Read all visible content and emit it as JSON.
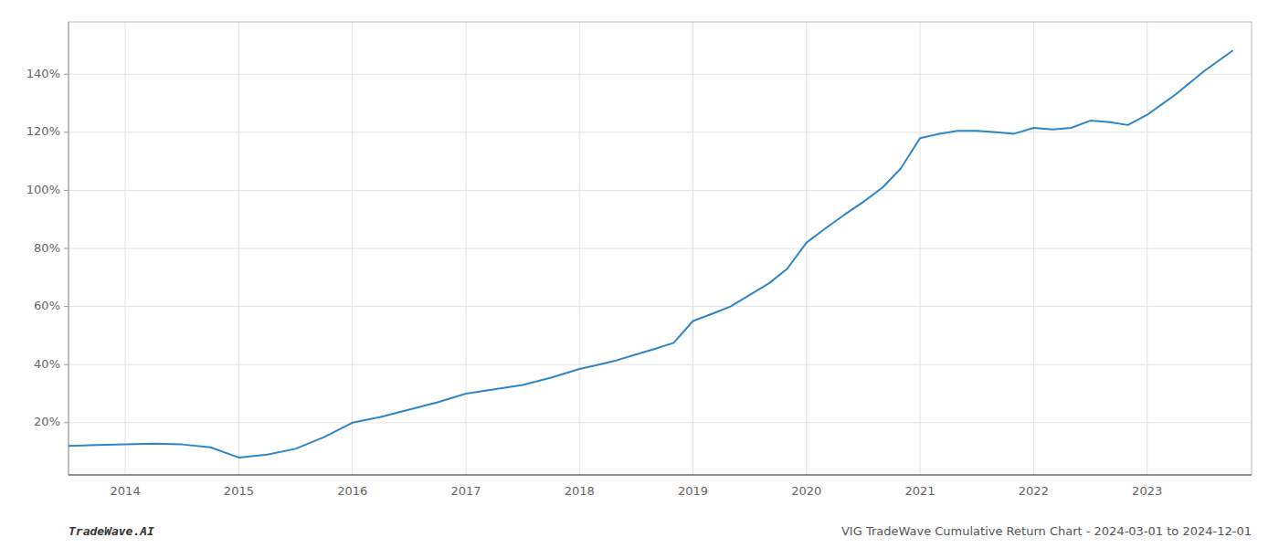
{
  "chart_data": {
    "type": "line",
    "x": [
      2013.5,
      2013.75,
      2014.0,
      2014.25,
      2014.5,
      2014.75,
      2015.0,
      2015.25,
      2015.5,
      2015.75,
      2016.0,
      2016.25,
      2016.5,
      2016.75,
      2017.0,
      2017.25,
      2017.5,
      2017.75,
      2018.0,
      2018.17,
      2018.33,
      2018.5,
      2018.67,
      2018.83,
      2019.0,
      2019.17,
      2019.33,
      2019.5,
      2019.67,
      2019.83,
      2020.0,
      2020.17,
      2020.33,
      2020.5,
      2020.67,
      2020.83,
      2021.0,
      2021.17,
      2021.33,
      2021.5,
      2021.67,
      2021.83,
      2022.0,
      2022.17,
      2022.33,
      2022.5,
      2022.67,
      2022.83,
      2023.0,
      2023.25,
      2023.5,
      2023.75
    ],
    "values": [
      12.0,
      12.3,
      12.5,
      12.8,
      12.5,
      11.5,
      8.0,
      9.0,
      11.0,
      15.0,
      20.0,
      22.0,
      24.5,
      27.0,
      30.0,
      31.5,
      33.0,
      35.5,
      38.5,
      40.0,
      41.5,
      43.5,
      45.5,
      47.5,
      55.0,
      57.5,
      60.0,
      64.0,
      68.0,
      73.0,
      82.0,
      87.0,
      91.5,
      96.0,
      101.0,
      107.5,
      118.0,
      119.5,
      120.5,
      120.5,
      120.0,
      119.5,
      121.5,
      121.0,
      121.5,
      124.0,
      123.5,
      122.5,
      126.0,
      133.0,
      141.0,
      148.0
    ],
    "color": "#2e86c8",
    "xlim": [
      2013.5,
      2023.92
    ],
    "ylim": [
      2,
      158
    ],
    "xticks": [
      2014,
      2015,
      2016,
      2017,
      2018,
      2019,
      2020,
      2021,
      2022,
      2023
    ],
    "yticks": [
      {
        "value": 20,
        "label": "20%"
      },
      {
        "value": 40,
        "label": "40%"
      },
      {
        "value": 60,
        "label": "60%"
      },
      {
        "value": 80,
        "label": "80%"
      },
      {
        "value": 100,
        "label": "100%"
      },
      {
        "value": 120,
        "label": "120%"
      },
      {
        "value": 140,
        "label": "140%"
      }
    ],
    "grid": true,
    "annotations": [
      "TradeWave.AI",
      "VIG TradeWave Cumulative Return Chart - 2024-03-01 to 2024-12-01"
    ]
  }
}
